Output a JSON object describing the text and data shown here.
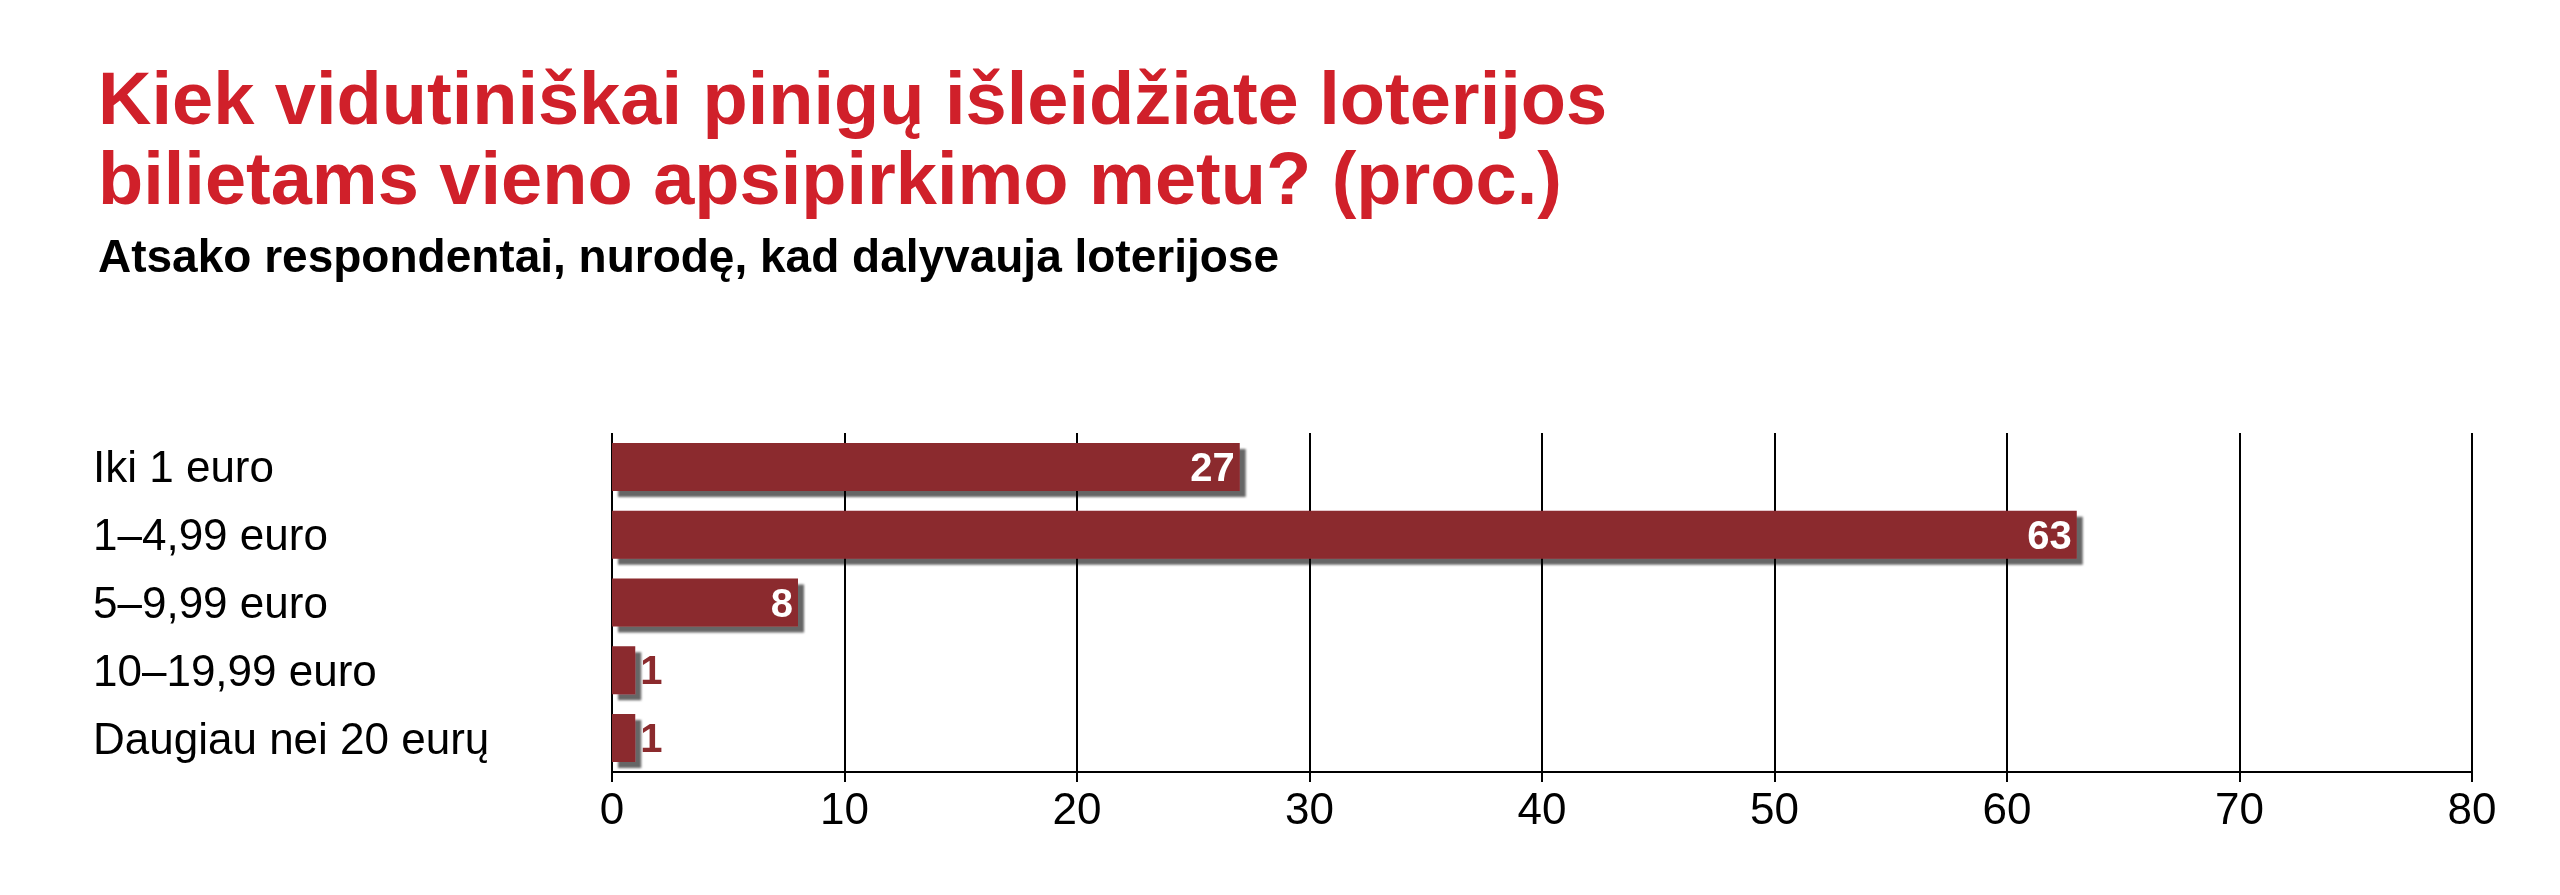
{
  "chart_data": {
    "type": "bar",
    "orientation": "horizontal",
    "title": "Kiek vidutiniškai pinigų išleidžiate loterijos\nbilietams vieno apsipirkimo metu? (proc.)",
    "subtitle": "Atsako respondentai, nurodę, kad dalyvauja loterijose",
    "categories": [
      "Iki 1 euro",
      "1–4,99 euro",
      "5–9,99 euro",
      "10–19,99 euro",
      "Daugiau nei 20 eurų"
    ],
    "values": [
      27,
      63,
      8,
      1,
      1
    ],
    "color": "#8b2a2d",
    "data_labels": true,
    "xlim": [
      0,
      80
    ],
    "xticks": [
      0,
      10,
      20,
      30,
      40,
      50,
      60,
      70,
      80
    ],
    "grid": "x"
  }
}
